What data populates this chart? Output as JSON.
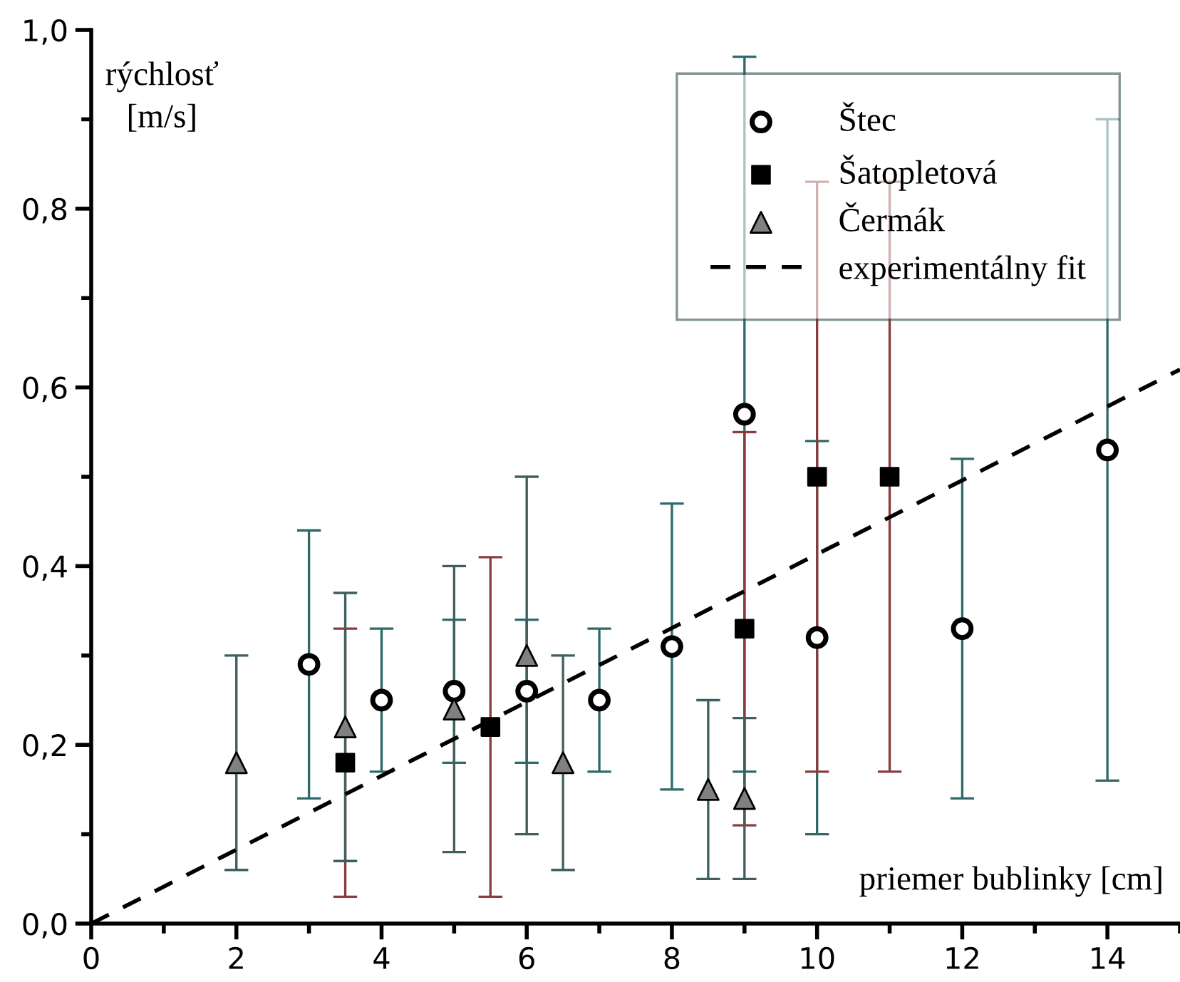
{
  "chart_data": {
    "type": "scatter",
    "xlabel": "priemer bublinky [cm]",
    "ylabel": "rýchlosť\n[m/s]",
    "xlim": [
      0,
      15
    ],
    "xticks": [
      0,
      2,
      4,
      6,
      8,
      10,
      12,
      14
    ],
    "ylim": [
      0,
      1.0
    ],
    "yticks": [
      {
        "value": 0,
        "label": "0,0"
      },
      {
        "value": 0.2,
        "label": "0,2"
      },
      {
        "value": 0.4,
        "label": "0,4"
      },
      {
        "value": 0.6,
        "label": "0,6"
      },
      {
        "value": 0.8,
        "label": "0,8"
      },
      {
        "value": 1.0,
        "label": "1,0"
      }
    ],
    "grid": false,
    "legend": "top right",
    "series": [
      {
        "name": "Štec",
        "marker": "circle",
        "color": "#ffffff",
        "x": [
          3,
          4,
          5,
          6,
          7,
          8,
          9,
          10,
          12,
          14
        ],
        "values": [
          0.29,
          0.25,
          0.26,
          0.26,
          0.25,
          0.31,
          0.57,
          0.32,
          0.33,
          0.53
        ],
        "errors": [
          0.15,
          0.08,
          0.08,
          0.08,
          0.08,
          0.16,
          0.4,
          0.22,
          0.19,
          0.37
        ]
      },
      {
        "name": "Šatopletová",
        "marker": "square",
        "color": "#000000",
        "x": [
          3.5,
          5.5,
          9,
          10,
          11
        ],
        "values": [
          0.18,
          0.22,
          0.33,
          0.5,
          0.5
        ],
        "errors": [
          0.15,
          0.19,
          0.22,
          0.33,
          0.33
        ]
      },
      {
        "name": "Čermák",
        "marker": "triangle",
        "color": "#808080",
        "x": [
          2,
          3.5,
          5,
          6,
          6.5,
          8.5,
          9
        ],
        "values": [
          0.18,
          0.22,
          0.24,
          0.3,
          0.18,
          0.15,
          0.14
        ],
        "errors": [
          0.12,
          0.15,
          0.16,
          0.2,
          0.12,
          0.1,
          0.09
        ]
      },
      {
        "name": "experimentálny fit",
        "type": "line",
        "line_style": "dashed",
        "marker": "none",
        "color": "#000000",
        "x": [
          0,
          15
        ],
        "values": [
          0,
          0.62
        ]
      }
    ]
  }
}
